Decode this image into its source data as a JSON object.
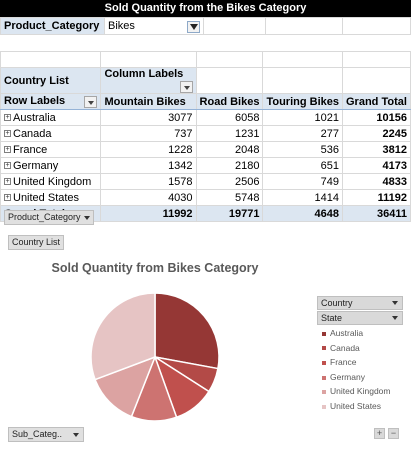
{
  "title": "Sold Quantity from the Bikes Category",
  "filter": {
    "label": "Product_Category",
    "value": "Bikes"
  },
  "pivot": {
    "country_list_label": "Country List",
    "column_labels": "Column Labels",
    "row_labels": "Row Labels",
    "columns": [
      "Mountain Bikes",
      "Road Bikes",
      "Touring Bikes",
      "Grand Total"
    ],
    "rows": [
      {
        "name": "Australia",
        "values": [
          "3077",
          "6058",
          "1021",
          "10156"
        ]
      },
      {
        "name": "Canada",
        "values": [
          "737",
          "1231",
          "277",
          "2245"
        ]
      },
      {
        "name": "France",
        "values": [
          "1228",
          "2048",
          "536",
          "3812"
        ]
      },
      {
        "name": "Germany",
        "values": [
          "1342",
          "2180",
          "651",
          "4173"
        ]
      },
      {
        "name": "United Kingdom",
        "values": [
          "1578",
          "2506",
          "749",
          "4833"
        ]
      },
      {
        "name": "United States",
        "values": [
          "4030",
          "5748",
          "1414",
          "11192"
        ]
      }
    ],
    "total_label": "Grand Total",
    "totals": [
      "11992",
      "19771",
      "4648",
      "36411"
    ]
  },
  "chips": {
    "product_category": "Product_Category",
    "country_list": "Country List",
    "sub_category": "Sub_Categ.."
  },
  "legend_fields": {
    "country": "Country",
    "state": "State"
  },
  "zoom": {
    "plus": "+",
    "minus": "−"
  },
  "chart_data": {
    "type": "pie",
    "title": "Sold Quantity from Bikes Category",
    "categories": [
      "Australia",
      "Canada",
      "France",
      "Germany",
      "United Kingdom",
      "United States"
    ],
    "values": [
      10156,
      2245,
      3812,
      4173,
      4833,
      11192
    ],
    "colors": [
      "#953735",
      "#b34a47",
      "#c0504d",
      "#cd7371",
      "#dca3a2",
      "#e6c4c4"
    ],
    "legend": "right"
  }
}
